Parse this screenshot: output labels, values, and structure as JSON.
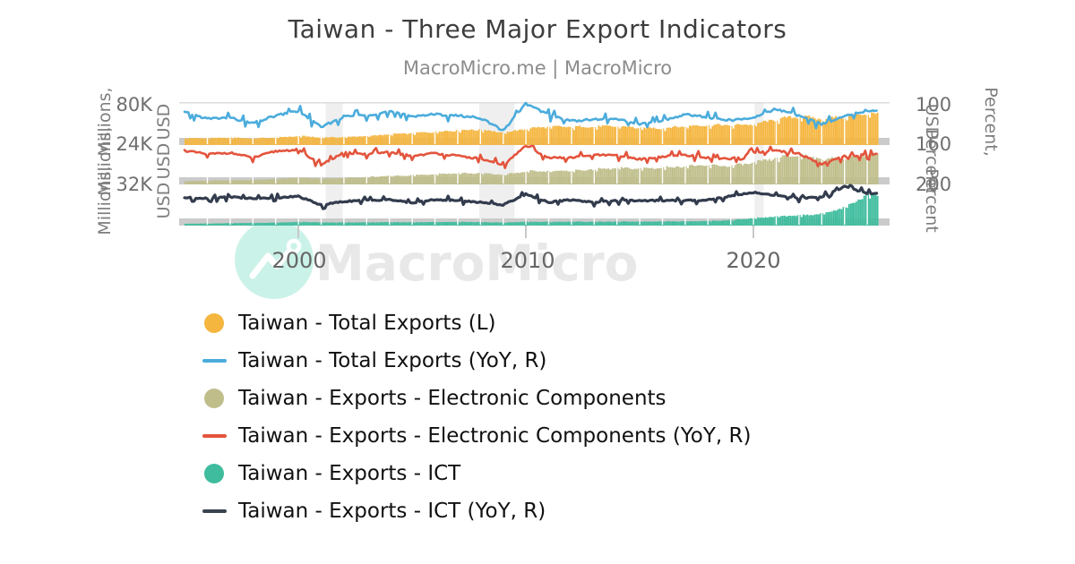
{
  "title": "Taiwan - Three Major Export Indicators",
  "subtitle": "MacroMicro.me | MacroMicro",
  "watermark": {
    "text": "MacroMicro",
    "icon": "macromicro-trend-logo",
    "circle_color": "#cbf2e8",
    "text_color": "#e8e8e8"
  },
  "axes": {
    "left_ticks": [
      "80K",
      "24K",
      "32K"
    ],
    "right_ticks": [
      "100",
      "160",
      "200"
    ],
    "left_titles": [
      [
        "Millions,",
        "USD"
      ],
      [
        "Millions,",
        "USD"
      ],
      [
        "Millions,",
        "USD"
      ]
    ],
    "right_titles": [
      [
        "Percent,",
        "USD"
      ],
      [
        "",
        "Percent"
      ],
      [
        "",
        "Percent"
      ]
    ],
    "x_ticks": [
      "2000",
      "2010",
      "2020"
    ]
  },
  "legend": [
    {
      "label": "Taiwan - Total Exports (L)",
      "marker": "circle",
      "color": "#f5b640"
    },
    {
      "label": "Taiwan - Total Exports (YoY, R)",
      "marker": "line",
      "color": "#4bacdc"
    },
    {
      "label": "Taiwan - Exports - Electronic Components",
      "marker": "circle",
      "color": "#bfbe8b"
    },
    {
      "label": "Taiwan - Exports - Electronic Components (YoY, R)",
      "marker": "line",
      "color": "#e3543d"
    },
    {
      "label": "Taiwan - Exports - ICT",
      "marker": "circle",
      "color": "#3ebc9d"
    },
    {
      "label": "Taiwan - Exports - ICT (YoY, R)",
      "marker": "line",
      "color": "#3a4350"
    }
  ],
  "chart_data": {
    "type": "mixed-bar-line",
    "x_range_years": [
      1995,
      2025.5
    ],
    "x_tick_years": [
      2000,
      2010,
      2020
    ],
    "recession_bands_years": [
      [
        2001.2,
        2001.95
      ],
      [
        2007.95,
        2009.5
      ],
      [
        2020.05,
        2020.45
      ]
    ],
    "grid_colors": {
      "axis_strip": "#cbcbcb",
      "top_border": "#dedede",
      "recession": "#efefef",
      "year_gap": "#ffffff"
    },
    "years": [
      1995,
      1996,
      1997,
      1998,
      1999,
      2000,
      2001,
      2002,
      2003,
      2004,
      2005,
      2006,
      2007,
      2008,
      2009,
      2010,
      2011,
      2012,
      2013,
      2014,
      2015,
      2016,
      2017,
      2018,
      2019,
      2020,
      2021,
      2022,
      2023,
      2024,
      2025
    ],
    "panels": [
      {
        "bar_series": {
          "name": "Taiwan - Total Exports (L)",
          "unit": "Millions, USD",
          "color": "#f5b640",
          "axis_top_tick": "80K",
          "values": [
            9500,
            9800,
            10200,
            9400,
            10400,
            12600,
            10400,
            11200,
            12500,
            15000,
            16400,
            18600,
            20500,
            21600,
            17000,
            23000,
            25600,
            25200,
            25600,
            26400,
            23800,
            23500,
            26500,
            27800,
            27600,
            28900,
            36000,
            40000,
            36000,
            39500,
            44500
          ]
        },
        "line_series": {
          "name": "Taiwan - Total Exports (YoY, R)",
          "unit": "Percent",
          "color": "#4bacdc",
          "axis_top_tick": "100",
          "values": [
            18,
            3,
            5,
            -8,
            10,
            21,
            -17,
            8,
            11,
            20,
            9,
            13,
            10,
            5,
            -25,
            38,
            12,
            -2,
            1,
            3,
            -10,
            -2,
            13,
            6,
            -1,
            5,
            26,
            10,
            -10,
            10,
            22
          ]
        }
      },
      {
        "bar_series": {
          "name": "Taiwan - Exports - Electronic Components",
          "unit": "Millions, USD",
          "color": "#bfbe8b",
          "axis_top_tick": "24K",
          "values": [
            2200,
            2500,
            2900,
            3000,
            3600,
            4500,
            3700,
            4300,
            4800,
            5600,
            6000,
            6900,
            7400,
            7300,
            6400,
            8600,
            8800,
            9000,
            9900,
            10700,
            10500,
            11000,
            12100,
            12400,
            12200,
            14300,
            17300,
            19500,
            16600,
            17600,
            19500
          ]
        },
        "line_series": {
          "name": "Taiwan - Exports - Electronic Components (YoY, R)",
          "unit": "Percent",
          "color": "#e3543d",
          "axis_top_tick": "160",
          "values": [
            22,
            12,
            16,
            2,
            20,
            25,
            -18,
            16,
            12,
            17,
            7,
            15,
            7,
            -1,
            -20,
            36,
            2,
            2,
            10,
            8,
            -2,
            5,
            10,
            2,
            -2,
            17,
            21,
            13,
            -15,
            6,
            11
          ]
        }
      },
      {
        "bar_series": {
          "name": "Taiwan - Exports - ICT",
          "unit": "Millions, USD",
          "color": "#3ebc9d",
          "axis_top_tick": "32K",
          "values": [
            1600,
            1800,
            2100,
            2300,
            2600,
            3100,
            2700,
            2700,
            2800,
            3000,
            2800,
            3000,
            3100,
            3000,
            2600,
            3300,
            3200,
            3400,
            3300,
            3400,
            3500,
            3600,
            3700,
            3900,
            4700,
            6300,
            7700,
            8600,
            10000,
            15500,
            26500
          ]
        },
        "line_series": {
          "name": "Taiwan - Exports - ICT (YoY, R)",
          "unit": "Percent",
          "color": "#333c4e",
          "axis_top_tick": "200",
          "values": [
            14,
            12,
            17,
            10,
            13,
            19,
            -14,
            0,
            4,
            7,
            -6,
            7,
            3,
            -3,
            -13,
            27,
            -3,
            6,
            -3,
            3,
            3,
            3,
            3,
            6,
            20,
            34,
            22,
            12,
            16,
            55,
            30
          ]
        }
      }
    ]
  }
}
